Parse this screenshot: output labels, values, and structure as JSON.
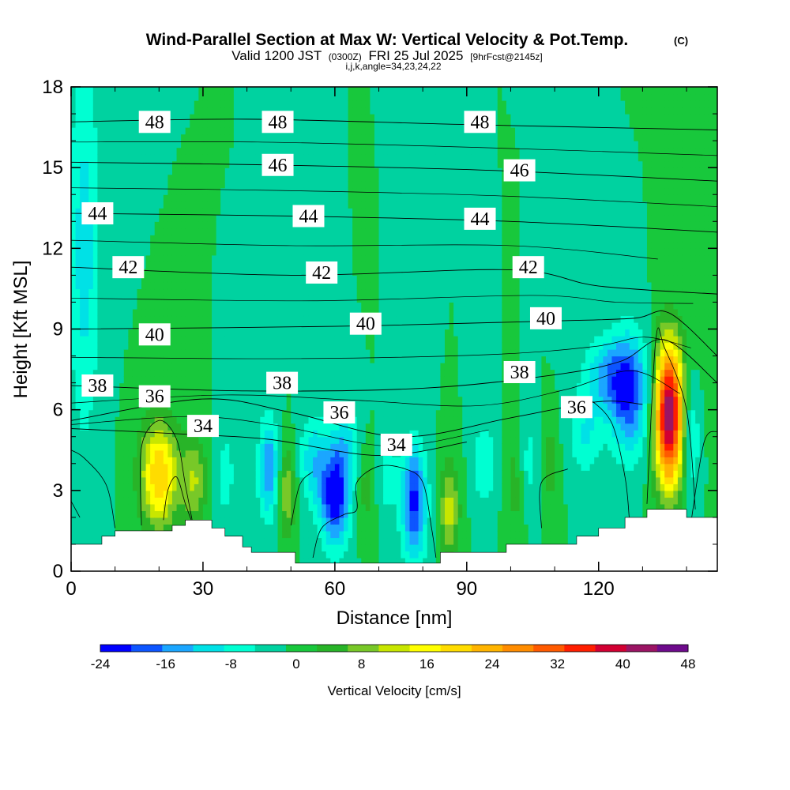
{
  "chart_data": {
    "type": "heatmap",
    "title": "Wind-Parallel Section at Max W: Vertical Velocity & Pot.Temp.",
    "title_mark": "(C)",
    "subtitle": {
      "valid_prefix": "Valid 1200 JST",
      "utc": "(0300Z)",
      "date": "FRI 25 Jul 2025",
      "fcst": "[9hrFcst@2145z]"
    },
    "params": "i,j,k,angle=34,23,24,22",
    "xlabel": "Distance [nm]",
    "ylabel": "Height [Kft MSL]",
    "xlim": [
      0,
      147
    ],
    "ylim": [
      0,
      18
    ],
    "x_ticks": [
      0,
      30,
      60,
      90,
      120
    ],
    "y_ticks": [
      0,
      3,
      6,
      9,
      12,
      15,
      18
    ],
    "colorbar": {
      "label": "Vertical Velocity [cm/s]",
      "tick_labels": [
        -24,
        -16,
        -8,
        0,
        8,
        16,
        24,
        32,
        40,
        48
      ],
      "bins": [
        -24,
        -20,
        -16,
        -12,
        -8,
        -4,
        0,
        4,
        8,
        12,
        16,
        20,
        24,
        28,
        32,
        36,
        40,
        44,
        48
      ],
      "colors": [
        "#0000ff",
        "#0d55ff",
        "#1ba6ff",
        "#00e1e6",
        "#00ffd2",
        "#00d2a0",
        "#18c83c",
        "#28b428",
        "#78c828",
        "#c8e600",
        "#ffff00",
        "#ffdc00",
        "#ffb400",
        "#ff8c00",
        "#ff5a00",
        "#ff1e00",
        "#d20032",
        "#9b1464",
        "#6e0b8c"
      ]
    },
    "background_w": 0,
    "w_features": [
      {
        "x": 3,
        "y": 12,
        "w": -10,
        "sx": 2.5,
        "sy": 5
      },
      {
        "x": 20,
        "y": 3.6,
        "w": 24,
        "sx": 3.0,
        "sy": 1.4
      },
      {
        "x": 28,
        "y": 3.3,
        "w": 12,
        "sx": 2.0,
        "sy": 1.2
      },
      {
        "x": 35,
        "y": 3.6,
        "w": -6,
        "sx": 1.8,
        "sy": 1.2
      },
      {
        "x": 45,
        "y": 3.8,
        "w": -16,
        "sx": 1.7,
        "sy": 1.3
      },
      {
        "x": 49,
        "y": 3.0,
        "w": 12,
        "sx": 1.4,
        "sy": 1.2
      },
      {
        "x": 55,
        "y": 4.2,
        "w": -10,
        "sx": 2.2,
        "sy": 1.2
      },
      {
        "x": 60,
        "y": 2.8,
        "w": -24,
        "sx": 2.4,
        "sy": 1.3
      },
      {
        "x": 63,
        "y": 4.8,
        "w": -8,
        "sx": 2.5,
        "sy": 1.0
      },
      {
        "x": 67,
        "y": 3.3,
        "w": 6,
        "sx": 1.5,
        "sy": 1.3
      },
      {
        "x": 72,
        "y": 3.6,
        "w": -6,
        "sx": 1.6,
        "sy": 1.2
      },
      {
        "x": 78,
        "y": 2.6,
        "w": -21,
        "sx": 2.0,
        "sy": 1.5
      },
      {
        "x": 86,
        "y": 2.3,
        "w": 14,
        "sx": 1.6,
        "sy": 1.2
      },
      {
        "x": 94,
        "y": 4.0,
        "w": -8,
        "sx": 1.8,
        "sy": 1.2
      },
      {
        "x": 101,
        "y": 3.2,
        "w": 6,
        "sx": 1.6,
        "sy": 1.3
      },
      {
        "x": 104,
        "y": 4.0,
        "w": -6,
        "sx": 1.5,
        "sy": 1.2
      },
      {
        "x": 109,
        "y": 4.0,
        "w": 6,
        "sx": 1.3,
        "sy": 1.2
      },
      {
        "x": 117,
        "y": 5.0,
        "w": -8,
        "sx": 2.5,
        "sy": 1.0
      },
      {
        "x": 127,
        "y": 6.6,
        "w": -18,
        "sx": 3.2,
        "sy": 1.6
      },
      {
        "x": 122,
        "y": 7.2,
        "w": -12,
        "sx": 4.0,
        "sy": 1.0
      },
      {
        "x": 136,
        "y": 5.8,
        "w": 48,
        "sx": 2.3,
        "sy": 1.9
      },
      {
        "x": 141,
        "y": 5.0,
        "w": -10,
        "sx": 1.4,
        "sy": 1.5
      },
      {
        "x": 145,
        "y": 12.5,
        "w": 3,
        "sx": 3.0,
        "sy": 4.0
      }
    ],
    "theta_lines": [
      {
        "level": 48,
        "points": [
          [
            0,
            16.7
          ],
          [
            40,
            16.8
          ],
          [
            90,
            16.6
          ],
          [
            147,
            16.4
          ]
        ]
      },
      {
        "level": 46,
        "points": [
          [
            0,
            15.2
          ],
          [
            45,
            15.1
          ],
          [
            95,
            14.9
          ],
          [
            147,
            14.5
          ]
        ]
      },
      {
        "level": 44,
        "points": [
          [
            0,
            13.3
          ],
          [
            50,
            13.2
          ],
          [
            100,
            13.0
          ],
          [
            147,
            12.6
          ]
        ]
      },
      {
        "level": 42,
        "points": [
          [
            0,
            11.3
          ],
          [
            50,
            11.0
          ],
          [
            100,
            11.2
          ],
          [
            120,
            10.6
          ],
          [
            147,
            10.3
          ]
        ]
      },
      {
        "level": 40,
        "points": [
          [
            0,
            9.0
          ],
          [
            60,
            9.1
          ],
          [
            110,
            9.3
          ],
          [
            128,
            9.4
          ],
          [
            136,
            9.6
          ],
          [
            147,
            8.0
          ]
        ]
      },
      {
        "level": 38,
        "points": [
          [
            0,
            6.9
          ],
          [
            40,
            6.7
          ],
          [
            80,
            6.8
          ],
          [
            110,
            7.3
          ],
          [
            125,
            7.8
          ],
          [
            135,
            8.6
          ],
          [
            147,
            7.0
          ]
        ]
      },
      {
        "level": 36,
        "points": [
          [
            0,
            5.6
          ],
          [
            30,
            6.4
          ],
          [
            50,
            5.9
          ],
          [
            75,
            5.0
          ],
          [
            100,
            5.7
          ],
          [
            120,
            6.3
          ],
          [
            130,
            6.2
          ]
        ]
      },
      {
        "level": 34,
        "points": [
          [
            0,
            5.3
          ],
          [
            25,
            5.1
          ],
          [
            45,
            4.9
          ],
          [
            70,
            4.3
          ],
          [
            90,
            4.8
          ]
        ]
      }
    ],
    "theta_labels": [
      {
        "text": "48",
        "x": 19,
        "y": 16.7
      },
      {
        "text": "48",
        "x": 47,
        "y": 16.7
      },
      {
        "text": "48",
        "x": 93,
        "y": 16.7
      },
      {
        "text": "46",
        "x": 47,
        "y": 15.1
      },
      {
        "text": "46",
        "x": 102,
        "y": 14.9
      },
      {
        "text": "44",
        "x": 6,
        "y": 13.3
      },
      {
        "text": "44",
        "x": 54,
        "y": 13.2
      },
      {
        "text": "44",
        "x": 93,
        "y": 13.1
      },
      {
        "text": "42",
        "x": 13,
        "y": 11.3
      },
      {
        "text": "42",
        "x": 57,
        "y": 11.1
      },
      {
        "text": "42",
        "x": 104,
        "y": 11.3
      },
      {
        "text": "40",
        "x": 19,
        "y": 8.8
      },
      {
        "text": "40",
        "x": 67,
        "y": 9.2
      },
      {
        "text": "40",
        "x": 108,
        "y": 9.4
      },
      {
        "text": "38",
        "x": 6,
        "y": 6.9
      },
      {
        "text": "38",
        "x": 48,
        "y": 7.0
      },
      {
        "text": "38",
        "x": 102,
        "y": 7.4
      },
      {
        "text": "36",
        "x": 19,
        "y": 6.5
      },
      {
        "text": "36",
        "x": 61,
        "y": 5.9
      },
      {
        "text": "36",
        "x": 115,
        "y": 6.1
      },
      {
        "text": "34",
        "x": 30,
        "y": 5.4
      },
      {
        "text": "34",
        "x": 74,
        "y": 4.7
      }
    ],
    "low_contours": [
      [
        [
          0,
          4.5
        ],
        [
          3,
          4.2
        ],
        [
          8,
          3.2
        ],
        [
          10,
          1.6
        ]
      ],
      [
        [
          0,
          2.6
        ],
        [
          2,
          2.0
        ]
      ],
      [
        [
          16,
          1.7
        ],
        [
          16,
          4.6
        ],
        [
          20,
          5.6
        ],
        [
          24,
          4.9
        ],
        [
          26,
          3.2
        ],
        [
          28,
          1.5
        ]
      ],
      [
        [
          21,
          1.9
        ],
        [
          22,
          3.0
        ],
        [
          24,
          3.5
        ],
        [
          26,
          2.5
        ],
        [
          28,
          1.6
        ]
      ],
      [
        [
          55,
          0.5
        ],
        [
          57,
          1.6
        ],
        [
          62,
          2.1
        ],
        [
          65,
          2.3
        ],
        [
          65,
          3.3
        ],
        [
          70,
          3.9
        ],
        [
          76,
          3.8
        ],
        [
          80,
          3.3
        ],
        [
          82,
          1.6
        ],
        [
          83,
          0.5
        ]
      ],
      [
        [
          50,
          1.7
        ],
        [
          52,
          3.2
        ],
        [
          55,
          3.7
        ]
      ],
      [
        [
          107,
          1.6
        ],
        [
          107,
          3.3
        ],
        [
          113,
          3.8
        ]
      ],
      [
        [
          118,
          6.4
        ],
        [
          123,
          5.5
        ],
        [
          126,
          3.5
        ],
        [
          127,
          1.9
        ]
      ],
      [
        [
          131,
          2.5
        ],
        [
          133,
          8.6
        ],
        [
          135,
          8.3
        ],
        [
          140,
          6.0
        ],
        [
          142,
          2.3
        ]
      ],
      [
        [
          141,
          1.8
        ],
        [
          144,
          4.8
        ],
        [
          147,
          5.2
        ]
      ]
    ],
    "terrain": [
      [
        0,
        1.0
      ],
      [
        7,
        1.0
      ],
      [
        7,
        1.3
      ],
      [
        10,
        1.3
      ],
      [
        10,
        1.5
      ],
      [
        23,
        1.5
      ],
      [
        23,
        1.7
      ],
      [
        26,
        1.7
      ],
      [
        26,
        1.9
      ],
      [
        32,
        1.9
      ],
      [
        32,
        1.6
      ],
      [
        35,
        1.6
      ],
      [
        35,
        1.3
      ],
      [
        39,
        1.3
      ],
      [
        39,
        0.9
      ],
      [
        41,
        0.9
      ],
      [
        41,
        0.7
      ],
      [
        51,
        0.7
      ],
      [
        51,
        0.3
      ],
      [
        84,
        0.3
      ],
      [
        84,
        0.7
      ],
      [
        99,
        0.7
      ],
      [
        99,
        1.0
      ],
      [
        115,
        1.0
      ],
      [
        115,
        1.3
      ],
      [
        120,
        1.3
      ],
      [
        120,
        1.6
      ],
      [
        126,
        1.6
      ],
      [
        126,
        2.0
      ],
      [
        131,
        2.0
      ],
      [
        131,
        2.3
      ],
      [
        140,
        2.3
      ],
      [
        140,
        2.0
      ],
      [
        147,
        2.0
      ]
    ]
  }
}
